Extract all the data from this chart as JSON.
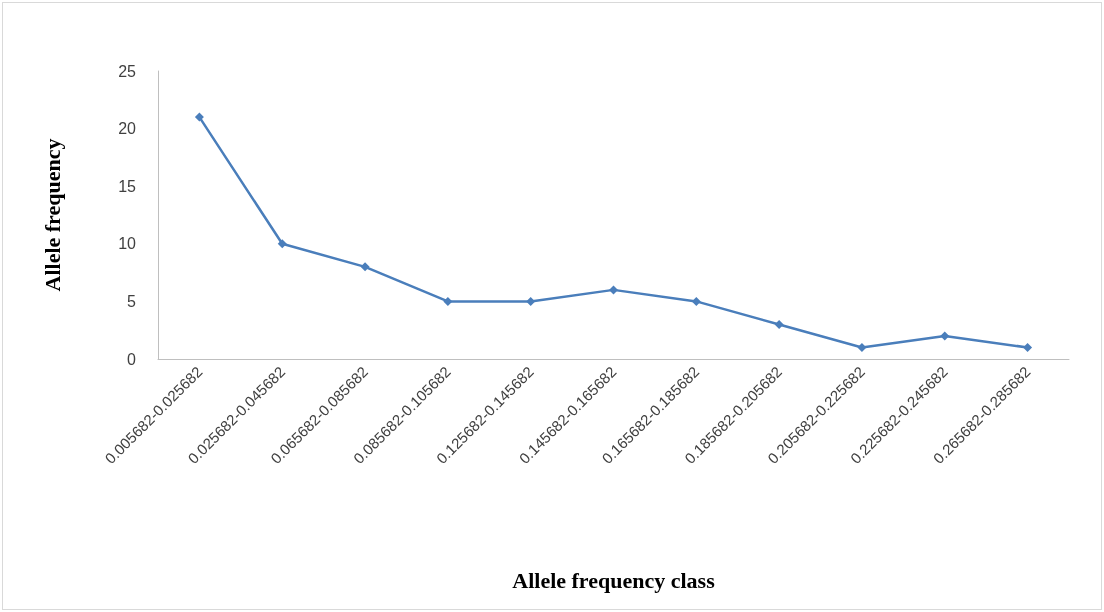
{
  "chart_data": {
    "type": "line",
    "xlabel": "Allele frequency class",
    "ylabel": "Allele frequency",
    "categories": [
      "0.005682-0.025682",
      "0.025682-0.045682",
      "0.065682-0.085682",
      "0.085682-0.105682",
      "0.125682-0.145682",
      "0.145682-0.165682",
      "0.165682-0.185682",
      "0.185682-0.205682",
      "0.205682-0.225682",
      "0.225682-0.245682",
      "0.265682-0.285682"
    ],
    "series": [
      {
        "color": "#4a7ebb",
        "values": [
          21,
          10,
          8,
          5,
          5,
          6,
          5,
          3,
          1,
          2,
          1
        ]
      }
    ],
    "ylim": [
      0,
      25
    ],
    "yticks": [
      0,
      5,
      10,
      15,
      20,
      25
    ],
    "grid": false,
    "marker": "diamond",
    "line_style": "solid"
  }
}
